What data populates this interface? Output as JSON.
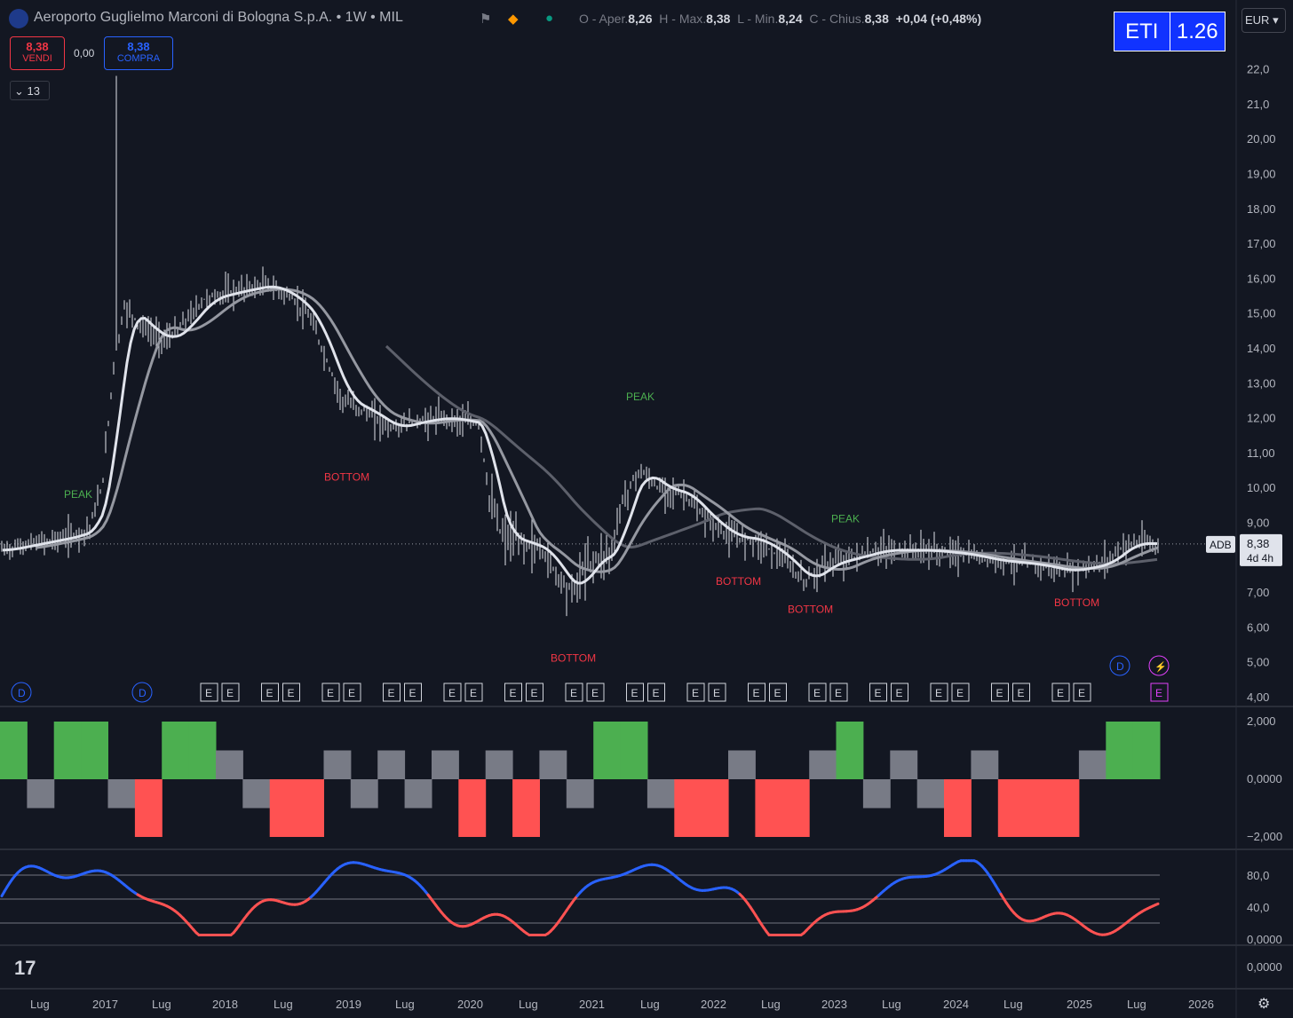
{
  "header": {
    "title": "Aeroporto Guglielmo Marconi di Bologna S.p.A. • 1W • MIL",
    "ohlc": [
      {
        "label": "O - Aper.",
        "value": "8,26"
      },
      {
        "label": "H - Max.",
        "value": "8,38"
      },
      {
        "label": "L - Min.",
        "value": "8,24"
      },
      {
        "label": "C - Chius.",
        "value": "8,38"
      }
    ],
    "change": "+0,04 (+0,48%)",
    "eti_label": "ETI",
    "eti_value": "1.26",
    "currency": "EUR"
  },
  "trade": {
    "sell_price": "8,38",
    "sell_label": "VENDI",
    "spread": "0,00",
    "buy_price": "8,38",
    "buy_label": "COMPRA",
    "indicators_count": "13"
  },
  "colors": {
    "background": "#131722",
    "green": "#4caf50",
    "red": "#ff5252",
    "gray": "#787b86",
    "blue": "#2962ff"
  },
  "price_axis": {
    "ticks": [
      "22,0",
      "21,0",
      "20,00",
      "19,00",
      "18,00",
      "17,00",
      "16,00",
      "15,00",
      "14,00",
      "13,00",
      "12,00",
      "11,00",
      "10,00",
      "9,00",
      "8,00",
      "7,00",
      "6,00",
      "5,00",
      "4,00"
    ],
    "ticker_tag": "ADB",
    "last_price": "8,38",
    "countdown": "4d 4h"
  },
  "time_axis": {
    "labels": [
      "Lug",
      "2017",
      "Lug",
      "2018",
      "Lug",
      "2019",
      "Lug",
      "2020",
      "Lug",
      "2021",
      "Lug",
      "2022",
      "Lug",
      "2023",
      "Lug",
      "2024",
      "Lug",
      "2025",
      "Lug",
      "2026"
    ]
  },
  "annotations": [
    {
      "text": "PEAK",
      "type": "peak",
      "price": 9.7
    },
    {
      "text": "BOTTOM",
      "type": "bottom",
      "price": 10.2
    },
    {
      "text": "PEAK",
      "type": "peak",
      "price": 12.5
    },
    {
      "text": "BOTTOM",
      "type": "bottom",
      "price": 5.0
    },
    {
      "text": "BOTTOM",
      "type": "bottom",
      "price": 7.2
    },
    {
      "text": "BOTTOM",
      "type": "bottom",
      "price": 6.4
    },
    {
      "text": "PEAK",
      "type": "peak",
      "price": 9.0
    },
    {
      "text": "BOTTOM",
      "type": "bottom",
      "price": 6.6
    }
  ],
  "event_markers": {
    "dividend_label": "D",
    "earnings_label": "E",
    "earnings_count": 30,
    "upcoming_dividend": "D",
    "upcoming_earnings": "E",
    "upcoming_split_icon": "lightning-icon"
  },
  "histogram_panel": {
    "ticks": [
      "2,000",
      "0,0000",
      "−2,000"
    ],
    "values": [
      2,
      -1,
      2,
      2,
      -1,
      -2,
      2,
      2,
      1,
      -1,
      -2,
      -2,
      1,
      -1,
      1,
      -1,
      1,
      -2,
      1,
      -2,
      1,
      -1,
      2,
      2,
      -1,
      -2,
      -2,
      1,
      -2,
      -2,
      1,
      2,
      -1,
      1,
      -1,
      -2,
      1,
      -2,
      -2,
      -2,
      1,
      2,
      2
    ]
  },
  "oscillator_panel": {
    "ticks": [
      "80,0",
      "40,0",
      "0,0000"
    ],
    "upper_band": 80,
    "mid_band": 40,
    "lower_band": 0
  },
  "empty_panel": {
    "tick": "0,0000"
  }
}
